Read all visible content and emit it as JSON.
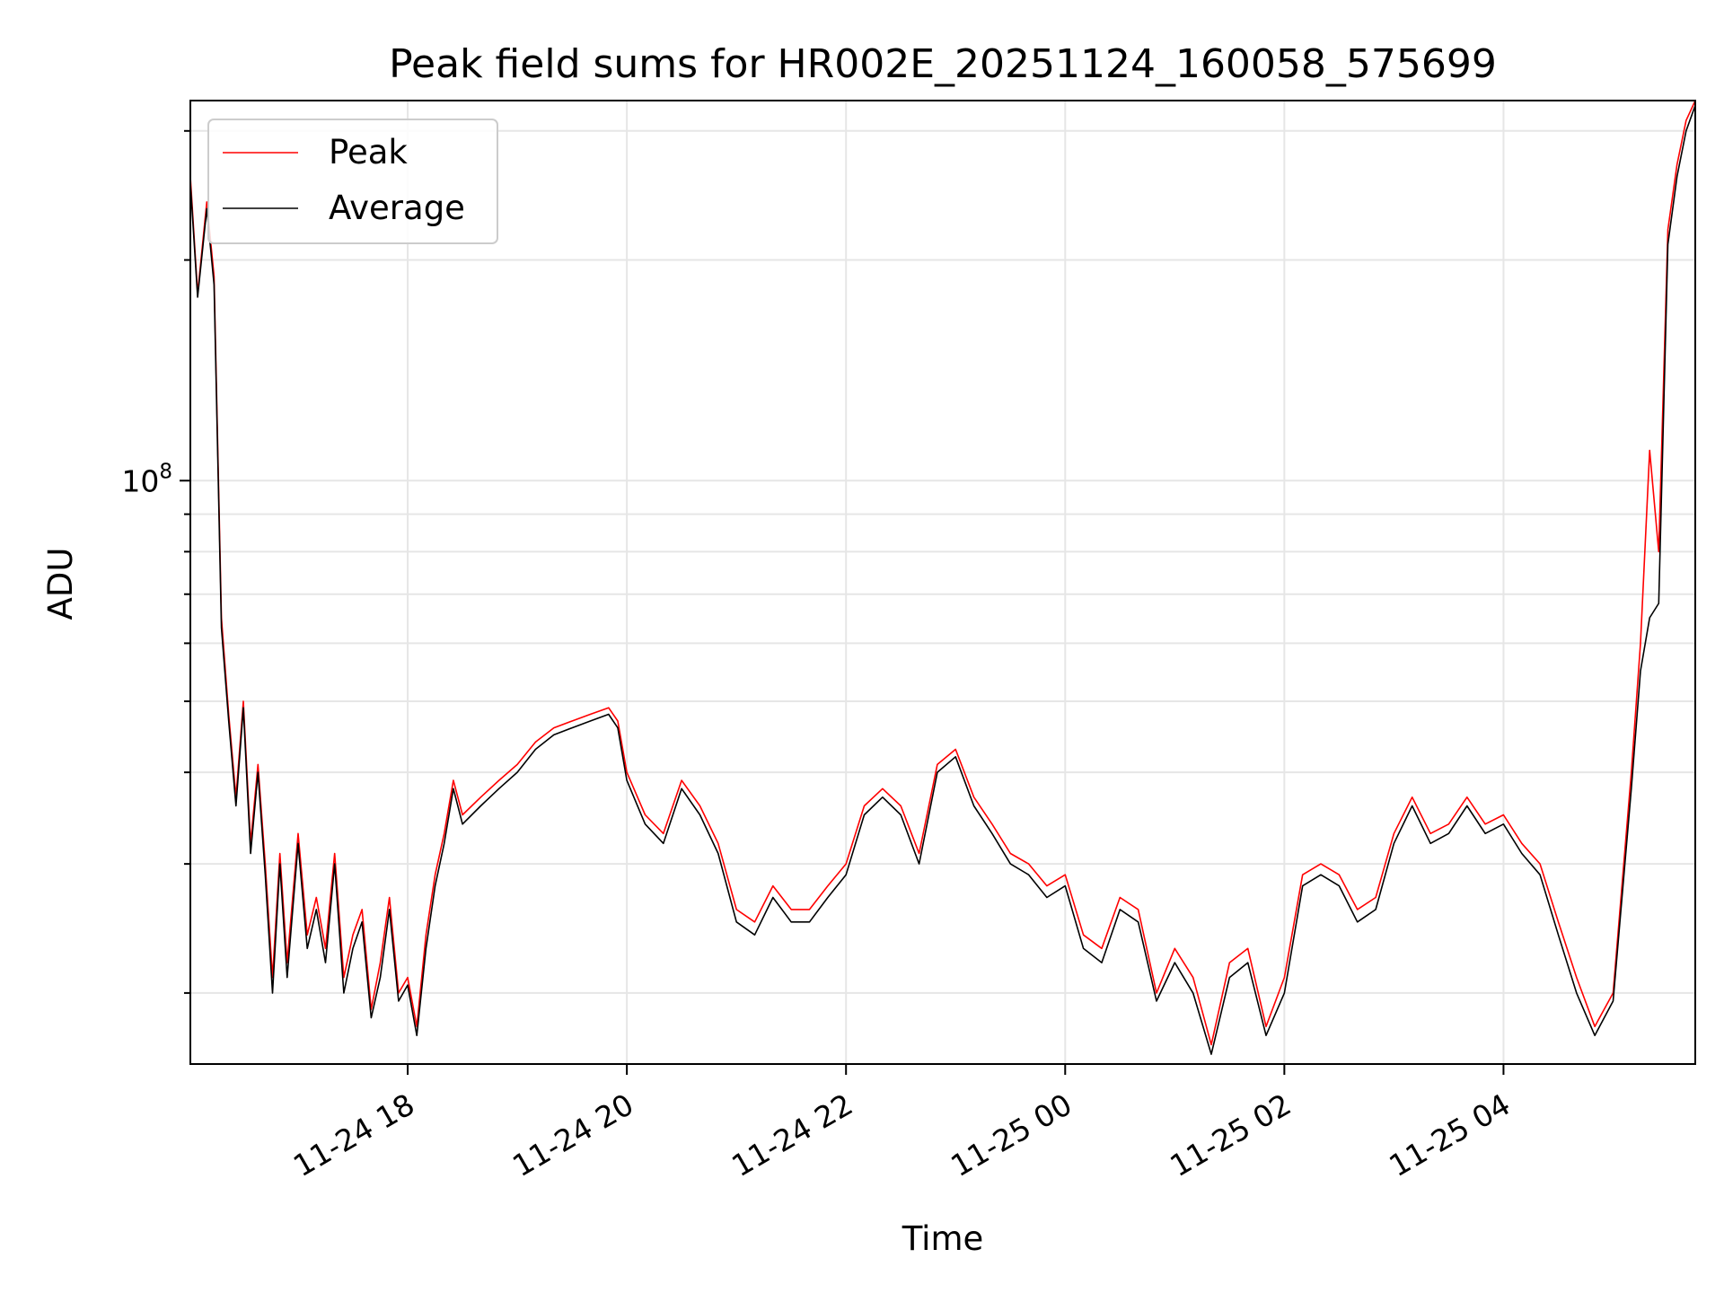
{
  "chart_data": {
    "type": "line",
    "title": "Peak field sums for HR002E_20251124_160058_575699",
    "xlabel": "Time",
    "ylabel": "ADU",
    "x_tick_labels": [
      "11-24 18",
      "11-24 20",
      "11-24 22",
      "11-25 00",
      "11-25 02",
      "11-25 04"
    ],
    "x_tick_times": [
      "2025-11-24T18:00",
      "2025-11-24T20:00",
      "2025-11-24T22:00",
      "2025-11-25T00:00",
      "2025-11-25T02:00",
      "2025-11-25T04:00"
    ],
    "y_tick_label": {
      "base": "10",
      "exp": "8"
    },
    "xlim": [
      "2025-11-24T16:01",
      "2025-11-25T05:45"
    ],
    "ylim": [
      16000000.0,
      330000000.0
    ],
    "yscale": "log",
    "grid": true,
    "legend_position": "upper-left",
    "x": [
      "2025-11-24T16:01",
      "2025-11-24T16:05",
      "2025-11-24T16:10",
      "2025-11-24T16:14",
      "2025-11-24T16:18",
      "2025-11-24T16:22",
      "2025-11-24T16:26",
      "2025-11-24T16:30",
      "2025-11-24T16:34",
      "2025-11-24T16:38",
      "2025-11-24T16:42",
      "2025-11-24T16:46",
      "2025-11-24T16:50",
      "2025-11-24T16:54",
      "2025-11-24T17:00",
      "2025-11-24T17:05",
      "2025-11-24T17:10",
      "2025-11-24T17:15",
      "2025-11-24T17:20",
      "2025-11-24T17:25",
      "2025-11-24T17:30",
      "2025-11-24T17:35",
      "2025-11-24T17:40",
      "2025-11-24T17:45",
      "2025-11-24T17:50",
      "2025-11-24T17:55",
      "2025-11-24T18:00",
      "2025-11-24T18:05",
      "2025-11-24T18:10",
      "2025-11-24T18:15",
      "2025-11-24T18:20",
      "2025-11-24T18:25",
      "2025-11-24T18:30",
      "2025-11-24T18:40",
      "2025-11-24T18:50",
      "2025-11-24T19:00",
      "2025-11-24T19:10",
      "2025-11-24T19:20",
      "2025-11-24T19:30",
      "2025-11-24T19:40",
      "2025-11-24T19:50",
      "2025-11-24T19:55",
      "2025-11-24T20:00",
      "2025-11-24T20:10",
      "2025-11-24T20:20",
      "2025-11-24T20:30",
      "2025-11-24T20:40",
      "2025-11-24T20:50",
      "2025-11-24T21:00",
      "2025-11-24T21:10",
      "2025-11-24T21:20",
      "2025-11-24T21:30",
      "2025-11-24T21:40",
      "2025-11-24T21:50",
      "2025-11-24T22:00",
      "2025-11-24T22:10",
      "2025-11-24T22:20",
      "2025-11-24T22:30",
      "2025-11-24T22:40",
      "2025-11-24T22:50",
      "2025-11-24T23:00",
      "2025-11-24T23:10",
      "2025-11-24T23:20",
      "2025-11-24T23:30",
      "2025-11-24T23:40",
      "2025-11-24T23:50",
      "2025-11-25T00:00",
      "2025-11-25T00:10",
      "2025-11-25T00:20",
      "2025-11-25T00:30",
      "2025-11-25T00:40",
      "2025-11-25T00:50",
      "2025-11-25T01:00",
      "2025-11-25T01:10",
      "2025-11-25T01:20",
      "2025-11-25T01:30",
      "2025-11-25T01:40",
      "2025-11-25T01:50",
      "2025-11-25T02:00",
      "2025-11-25T02:10",
      "2025-11-25T02:20",
      "2025-11-25T02:30",
      "2025-11-25T02:40",
      "2025-11-25T02:50",
      "2025-11-25T03:00",
      "2025-11-25T03:10",
      "2025-11-25T03:20",
      "2025-11-25T03:30",
      "2025-11-25T03:40",
      "2025-11-25T03:50",
      "2025-11-25T04:00",
      "2025-11-25T04:10",
      "2025-11-25T04:20",
      "2025-11-25T04:30",
      "2025-11-25T04:40",
      "2025-11-25T04:50",
      "2025-11-25T05:00",
      "2025-11-25T05:10",
      "2025-11-25T05:15",
      "2025-11-25T05:20",
      "2025-11-25T05:25",
      "2025-11-25T05:30",
      "2025-11-25T05:35",
      "2025-11-25T05:40",
      "2025-11-25T05:45"
    ],
    "series": [
      {
        "name": "Peak",
        "color": "#ff0000",
        "values": [
          260000000.0,
          180000000.0,
          240000000.0,
          190000000.0,
          65000000.0,
          48000000.0,
          37000000.0,
          50000000.0,
          32000000.0,
          41000000.0,
          30000000.0,
          21000000.0,
          31000000.0,
          22000000.0,
          33000000.0,
          24000000.0,
          27000000.0,
          23000000.0,
          31000000.0,
          21000000.0,
          24000000.0,
          26000000.0,
          19000000.0,
          22000000.0,
          27000000.0,
          20000000.0,
          21000000.0,
          18000000.0,
          24000000.0,
          29000000.0,
          33000000.0,
          39000000.0,
          35000000.0,
          37000000.0,
          39000000.0,
          41000000.0,
          44000000.0,
          46000000.0,
          47000000.0,
          48000000.0,
          49000000.0,
          47000000.0,
          40000000.0,
          35000000.0,
          33000000.0,
          39000000.0,
          36000000.0,
          32000000.0,
          26000000.0,
          25000000.0,
          28000000.0,
          26000000.0,
          26000000.0,
          28000000.0,
          30000000.0,
          36000000.0,
          38000000.0,
          36000000.0,
          31000000.0,
          41000000.0,
          43000000.0,
          37000000.0,
          34000000.0,
          31000000.0,
          30000000.0,
          28000000.0,
          29000000.0,
          24000000.0,
          23000000.0,
          27000000.0,
          26000000.0,
          20000000.0,
          23000000.0,
          21000000.0,
          17000000.0,
          22000000.0,
          23000000.0,
          18000000.0,
          21000000.0,
          29000000.0,
          30000000.0,
          29000000.0,
          26000000.0,
          27000000.0,
          33000000.0,
          37000000.0,
          33000000.0,
          34000000.0,
          37000000.0,
          34000000.0,
          35000000.0,
          32000000.0,
          30000000.0,
          25000000.0,
          21000000.0,
          18000000.0,
          20000000.0,
          40000000.0,
          60000000.0,
          110000000.0,
          80000000.0,
          220000000.0,
          270000000.0,
          310000000.0,
          330000000.0
        ]
      },
      {
        "name": "Average",
        "color": "#000000",
        "values": [
          255000000.0,
          178000000.0,
          235000000.0,
          185000000.0,
          63000000.0,
          47000000.0,
          36000000.0,
          49000000.0,
          31000000.0,
          40000000.0,
          29000000.0,
          20000000.0,
          30000000.0,
          21000000.0,
          32000000.0,
          23000000.0,
          26000000.0,
          22000000.0,
          30000000.0,
          20000000.0,
          23000000.0,
          25000000.0,
          18500000.0,
          21000000.0,
          26000000.0,
          19500000.0,
          20500000.0,
          17500000.0,
          23000000.0,
          28000000.0,
          32000000.0,
          38000000.0,
          34000000.0,
          36000000.0,
          38000000.0,
          40000000.0,
          43000000.0,
          45000000.0,
          46000000.0,
          47000000.0,
          48000000.0,
          46000000.0,
          39000000.0,
          34000000.0,
          32000000.0,
          38000000.0,
          35000000.0,
          31000000.0,
          25000000.0,
          24000000.0,
          27000000.0,
          25000000.0,
          25000000.0,
          27000000.0,
          29000000.0,
          35000000.0,
          37000000.0,
          35000000.0,
          30000000.0,
          40000000.0,
          42000000.0,
          36000000.0,
          33000000.0,
          30000000.0,
          29000000.0,
          27000000.0,
          28000000.0,
          23000000.0,
          22000000.0,
          26000000.0,
          25000000.0,
          19500000.0,
          22000000.0,
          20000000.0,
          16500000.0,
          21000000.0,
          22000000.0,
          17500000.0,
          20000000.0,
          28000000.0,
          29000000.0,
          28000000.0,
          25000000.0,
          26000000.0,
          32000000.0,
          36000000.0,
          32000000.0,
          33000000.0,
          36000000.0,
          33000000.0,
          34000000.0,
          31000000.0,
          29000000.0,
          24000000.0,
          20000000.0,
          17500000.0,
          19500000.0,
          38000000.0,
          55000000.0,
          65000000.0,
          68000000.0,
          210000000.0,
          260000000.0,
          300000000.0,
          325000000.0
        ]
      }
    ]
  }
}
